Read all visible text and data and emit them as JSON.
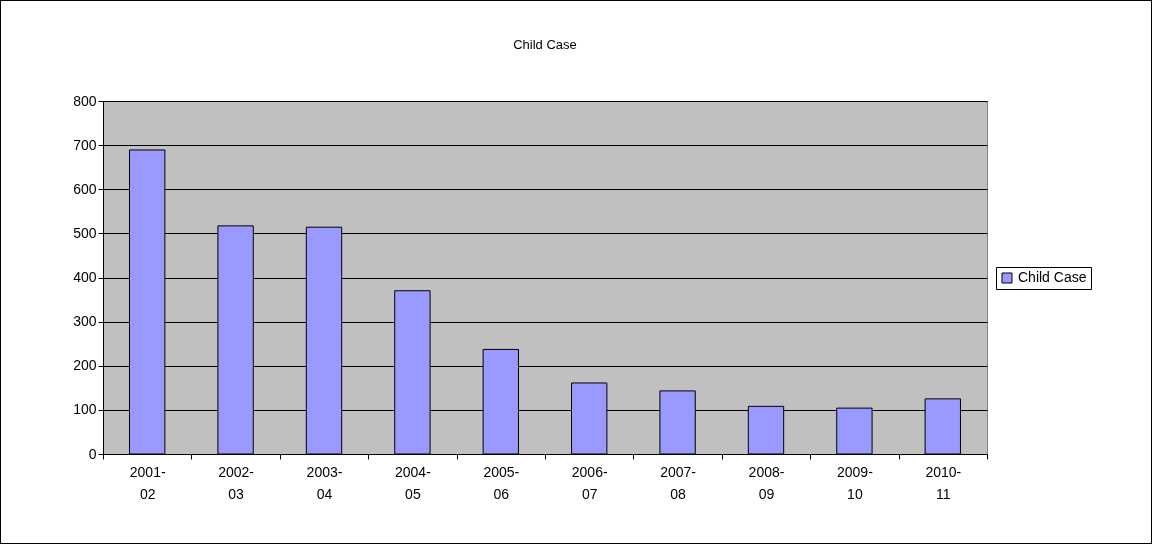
{
  "chart_data": {
    "type": "bar",
    "title": "Child Case",
    "categories": [
      "2001-02",
      "2002-03",
      "2003-04",
      "2004-05",
      "2005-06",
      "2006-07",
      "2007-08",
      "2008-09",
      "2009-10",
      "2010-11"
    ],
    "series": [
      {
        "name": "Child Case",
        "color": "#9999ff",
        "values": [
          689,
          517,
          514,
          370,
          237,
          161,
          143,
          108,
          104,
          125
        ]
      }
    ],
    "ylim": [
      0,
      800
    ],
    "yticks": [
      0,
      100,
      200,
      300,
      400,
      500,
      600,
      700,
      800
    ],
    "grid": "y",
    "legend": "right"
  }
}
